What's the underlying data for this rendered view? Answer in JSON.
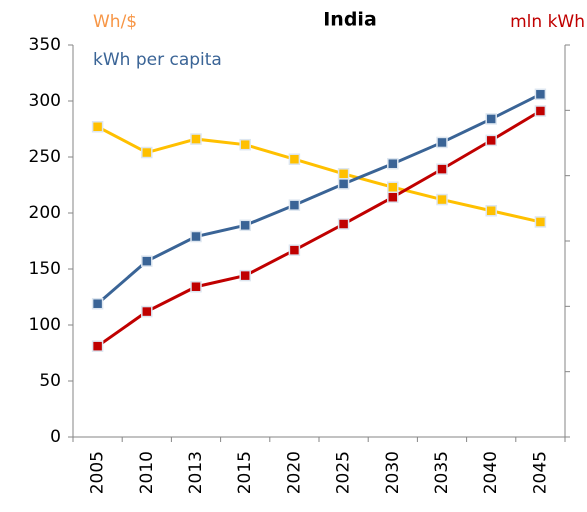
{
  "chart_data": {
    "type": "line",
    "title": "India",
    "categories": [
      "2005",
      "2010",
      "2013",
      "2015",
      "2020",
      "2025",
      "2030",
      "2035",
      "2040",
      "2045"
    ],
    "series": [
      {
        "name": "Wh/$",
        "color": "#ffc000",
        "label_color": "#f79646",
        "values": [
          277,
          254,
          266,
          261,
          248,
          235,
          223,
          212,
          202,
          192
        ]
      },
      {
        "name": "kWh per capita",
        "color": "#3a6496",
        "values": [
          119,
          157,
          179,
          189,
          207,
          226,
          244,
          263,
          284,
          306
        ]
      },
      {
        "name": "mln kWh",
        "color": "#c00000",
        "axis": "y2",
        "values": [
          1.39,
          1.92,
          2.3,
          2.47,
          2.86,
          3.26,
          3.67,
          4.1,
          4.54,
          4.99
        ]
      }
    ],
    "ylim": [
      0,
      350
    ],
    "yticks": [
      0,
      50,
      100,
      150,
      200,
      250,
      300,
      350
    ],
    "y2lim": [
      0,
      6
    ],
    "y2ticks": [
      0,
      1,
      2,
      3,
      4,
      5,
      6
    ],
    "grid": false
  }
}
